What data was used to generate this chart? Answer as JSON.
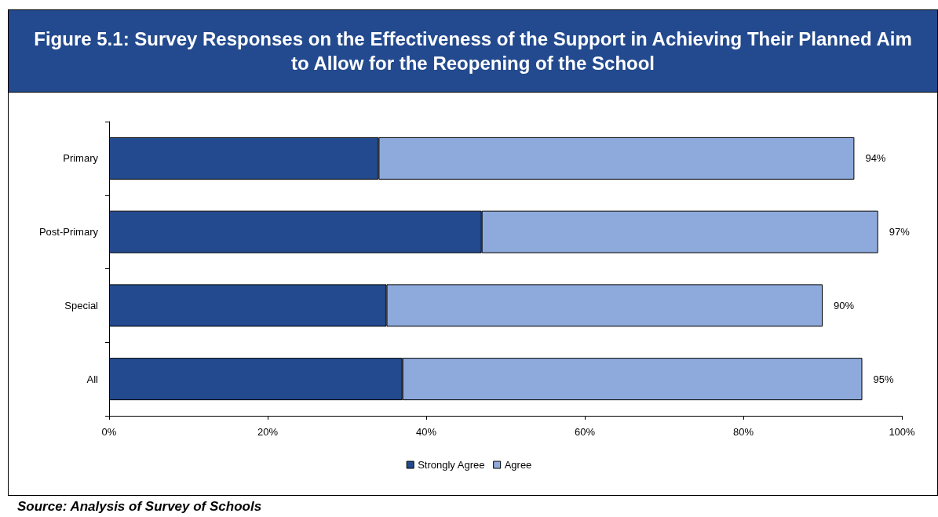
{
  "chart_data": {
    "type": "bar",
    "orientation": "horizontal",
    "stacked": true,
    "title": "Figure 5.1: Survey Responses on the Effectiveness of the Support in Achieving Their Planned Aim to Allow for the Reopening of the School",
    "categories": [
      "Primary",
      "Post-Primary",
      "Special",
      "All"
    ],
    "series": [
      {
        "name": "Strongly Agree",
        "color": "#234a8e",
        "values": [
          34,
          47,
          35,
          37
        ]
      },
      {
        "name": "Agree",
        "color": "#8eaadc",
        "values": [
          60,
          50,
          55,
          58
        ]
      }
    ],
    "totals": [
      "94%",
      "97%",
      "90%",
      "95%"
    ],
    "xlim": [
      0,
      100
    ],
    "xticks": [
      {
        "value": 0,
        "label": "0%"
      },
      {
        "value": 20,
        "label": "20%"
      },
      {
        "value": 40,
        "label": "40%"
      },
      {
        "value": 60,
        "label": "60%"
      },
      {
        "value": 80,
        "label": "80%"
      },
      {
        "value": 100,
        "label": "100%"
      }
    ],
    "grid": false,
    "legend": "bottom",
    "annotations": [
      "Source: Analysis of Survey of Schools"
    ]
  }
}
